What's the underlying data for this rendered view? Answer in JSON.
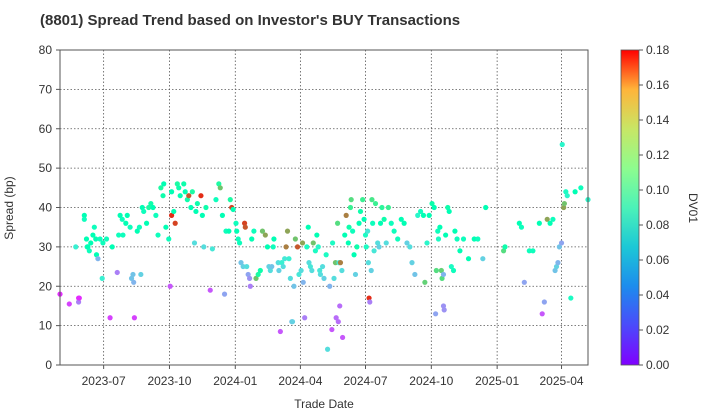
{
  "chart_data": {
    "type": "scatter",
    "title": "(8801)   Spread Trend based on Investor's BUY Transactions",
    "xlabel": "Trade Date",
    "ylabel": "Spread (bp)",
    "colorbar_label": "DV01",
    "colormap": "rainbow",
    "grid": true,
    "xlim": [
      "2023-05-01",
      "2025-05-08"
    ],
    "ylim": [
      0,
      80
    ],
    "clim": [
      0.0,
      0.18
    ],
    "xticks": [
      {
        "date": "2023-07-01",
        "label": "2023-07"
      },
      {
        "date": "2023-10-01",
        "label": "2023-10"
      },
      {
        "date": "2024-01-01",
        "label": "2024-01"
      },
      {
        "date": "2024-04-01",
        "label": "2024-04"
      },
      {
        "date": "2024-07-01",
        "label": "2024-07"
      },
      {
        "date": "2024-10-01",
        "label": "2024-10"
      },
      {
        "date": "2025-01-01",
        "label": "2025-01"
      },
      {
        "date": "2025-04-01",
        "label": "2025-04"
      }
    ],
    "yticks": [
      0,
      10,
      20,
      30,
      40,
      50,
      60,
      70,
      80
    ],
    "cticks": [
      "0.00",
      "0.02",
      "0.04",
      "0.06",
      "0.08",
      "0.10",
      "0.12",
      "0.14",
      "0.16",
      "0.18"
    ],
    "points": [
      [
        "2023-05-01",
        18,
        0.01
      ],
      [
        "2023-05-14",
        15.5,
        0.015
      ],
      [
        "2023-05-23",
        30,
        0.07
      ],
      [
        "2023-05-27",
        17,
        0.01
      ],
      [
        "2023-05-27",
        16,
        0.03
      ],
      [
        "2023-05-28",
        17,
        0.01
      ],
      [
        "2023-06-04",
        38,
        0.09
      ],
      [
        "2023-06-04",
        37,
        0.085
      ],
      [
        "2023-06-07",
        32,
        0.09
      ],
      [
        "2023-06-08",
        30,
        0.085
      ],
      [
        "2023-06-09",
        30,
        0.09
      ],
      [
        "2023-06-11",
        29,
        0.085
      ],
      [
        "2023-06-13",
        31,
        0.09
      ],
      [
        "2023-06-16",
        33,
        0.09
      ],
      [
        "2023-06-18",
        35,
        0.085
      ],
      [
        "2023-06-20",
        32,
        0.09
      ],
      [
        "2023-06-21",
        28,
        0.09
      ],
      [
        "2023-06-23",
        27,
        0.045
      ],
      [
        "2023-06-26",
        32,
        0.085
      ],
      [
        "2023-06-29",
        22,
        0.07
      ],
      [
        "2023-06-30",
        31,
        0.085
      ],
      [
        "2023-07-05",
        32,
        0.085
      ],
      [
        "2023-07-10",
        12,
        0.015
      ],
      [
        "2023-07-13",
        30,
        0.09
      ],
      [
        "2023-07-20",
        23.5,
        0.03
      ],
      [
        "2023-07-22",
        33,
        0.085
      ],
      [
        "2023-07-24",
        38,
        0.09
      ],
      [
        "2023-07-27",
        37,
        0.085
      ],
      [
        "2023-07-28",
        33,
        0.085
      ],
      [
        "2023-08-01",
        36,
        0.09
      ],
      [
        "2023-08-03",
        38,
        0.09
      ],
      [
        "2023-08-07",
        35,
        0.085
      ],
      [
        "2023-08-09",
        22,
        0.05
      ],
      [
        "2023-08-11",
        23,
        0.05
      ],
      [
        "2023-08-12",
        21,
        0.045
      ],
      [
        "2023-08-13",
        12,
        0.015
      ],
      [
        "2023-08-17",
        34,
        0.09
      ],
      [
        "2023-08-20",
        35,
        0.085
      ],
      [
        "2023-08-22",
        23,
        0.055
      ],
      [
        "2023-08-24",
        40,
        0.09
      ],
      [
        "2023-08-26",
        39,
        0.085
      ],
      [
        "2023-08-30",
        36,
        0.09
      ],
      [
        "2023-09-02",
        40,
        0.1
      ],
      [
        "2023-09-05",
        41,
        0.095
      ],
      [
        "2023-09-08",
        40,
        0.09
      ],
      [
        "2023-09-12",
        38,
        0.085
      ],
      [
        "2023-09-15",
        33,
        0.085
      ],
      [
        "2023-09-19",
        45,
        0.1
      ],
      [
        "2023-09-22",
        43,
        0.095
      ],
      [
        "2023-09-23",
        46,
        0.09
      ],
      [
        "2023-09-26",
        35,
        0.09
      ],
      [
        "2023-09-30",
        32,
        0.085
      ],
      [
        "2023-10-02",
        20,
        0.02
      ],
      [
        "2023-10-04",
        44,
        0.09
      ],
      [
        "2023-10-04",
        38,
        0.17
      ],
      [
        "2023-10-07",
        39,
        0.09
      ],
      [
        "2023-10-09",
        36,
        0.165
      ],
      [
        "2023-10-12",
        46,
        0.1
      ],
      [
        "2023-10-14",
        45,
        0.095
      ],
      [
        "2023-10-16",
        43,
        0.09
      ],
      [
        "2023-10-21",
        46,
        0.095
      ],
      [
        "2023-10-23",
        44,
        0.09
      ],
      [
        "2023-10-26",
        42,
        0.095
      ],
      [
        "2023-10-28",
        43,
        0.16
      ],
      [
        "2023-10-31",
        40,
        0.09
      ],
      [
        "2023-11-02",
        44,
        0.1
      ],
      [
        "2023-11-05",
        31,
        0.06
      ],
      [
        "2023-11-07",
        39,
        0.09
      ],
      [
        "2023-11-09",
        41,
        0.095
      ],
      [
        "2023-11-14",
        43,
        0.17
      ],
      [
        "2023-11-16",
        38,
        0.09
      ],
      [
        "2023-11-18",
        30,
        0.06
      ],
      [
        "2023-11-21",
        40,
        0.095
      ],
      [
        "2023-11-27",
        19,
        0.02
      ],
      [
        "2023-11-30",
        29.5,
        0.065
      ],
      [
        "2023-12-05",
        42,
        0.085
      ],
      [
        "2023-12-09",
        46,
        0.1
      ],
      [
        "2023-12-11",
        45,
        0.13
      ],
      [
        "2023-12-14",
        38,
        0.09
      ],
      [
        "2023-12-17",
        18,
        0.04
      ],
      [
        "2023-12-19",
        34,
        0.085
      ],
      [
        "2023-12-23",
        34,
        0.09
      ],
      [
        "2023-12-25",
        42,
        0.1
      ],
      [
        "2023-12-27",
        40,
        0.165
      ],
      [
        "2023-12-29",
        39.5,
        0.09
      ],
      [
        "2024-01-02",
        36,
        0.085
      ],
      [
        "2024-01-03",
        34,
        0.09
      ],
      [
        "2024-01-05",
        32,
        0.085
      ],
      [
        "2024-01-07",
        31,
        0.085
      ],
      [
        "2024-01-09",
        26,
        0.05
      ],
      [
        "2024-01-12",
        25,
        0.055
      ],
      [
        "2024-01-14",
        36,
        0.165
      ],
      [
        "2024-01-15",
        35,
        0.16
      ],
      [
        "2024-01-17",
        25,
        0.06
      ],
      [
        "2024-01-19",
        23,
        0.04
      ],
      [
        "2024-01-21",
        22,
        0.035
      ],
      [
        "2024-01-22",
        20,
        0.03
      ],
      [
        "2024-01-24",
        32,
        0.09
      ],
      [
        "2024-01-27",
        34,
        0.085
      ],
      [
        "2024-01-30",
        22,
        0.13
      ],
      [
        "2024-02-02",
        23,
        0.1
      ],
      [
        "2024-02-05",
        24,
        0.095
      ],
      [
        "2024-02-08",
        34,
        0.13
      ],
      [
        "2024-02-12",
        33,
        0.14
      ],
      [
        "2024-02-15",
        30,
        0.09
      ],
      [
        "2024-02-17",
        25,
        0.055
      ],
      [
        "2024-02-19",
        24,
        0.06
      ],
      [
        "2024-02-21",
        25,
        0.05
      ],
      [
        "2024-02-23",
        30,
        0.085
      ],
      [
        "2024-02-24",
        32,
        0.09
      ],
      [
        "2024-03-01",
        26,
        0.06
      ],
      [
        "2024-03-02",
        24,
        0.055
      ],
      [
        "2024-03-04",
        8.5,
        0.02
      ],
      [
        "2024-03-06",
        26,
        0.07
      ],
      [
        "2024-03-08",
        25,
        0.06
      ],
      [
        "2024-03-10",
        27,
        0.065
      ],
      [
        "2024-03-12",
        30,
        0.15
      ],
      [
        "2024-03-14",
        34,
        0.14
      ],
      [
        "2024-03-16",
        27,
        0.07
      ],
      [
        "2024-03-18",
        22,
        0.06
      ],
      [
        "2024-03-20",
        11,
        0.05
      ],
      [
        "2024-03-21",
        11,
        0.055
      ],
      [
        "2024-03-23",
        20,
        0.05
      ],
      [
        "2024-03-25",
        32,
        0.13
      ],
      [
        "2024-03-28",
        30,
        0.16
      ],
      [
        "2024-03-30",
        23,
        0.065
      ],
      [
        "2024-04-02",
        24,
        0.06
      ],
      [
        "2024-04-04",
        31,
        0.14
      ],
      [
        "2024-04-05",
        21,
        0.045
      ],
      [
        "2024-04-07",
        12,
        0.03
      ],
      [
        "2024-04-10",
        30,
        0.08
      ],
      [
        "2024-04-12",
        35,
        0.09
      ],
      [
        "2024-04-13",
        26,
        0.06
      ],
      [
        "2024-04-15",
        25,
        0.065
      ],
      [
        "2024-04-17",
        24,
        0.06
      ],
      [
        "2024-04-19",
        31,
        0.13
      ],
      [
        "2024-04-22",
        29,
        0.08
      ],
      [
        "2024-04-24",
        33,
        0.09
      ],
      [
        "2024-04-26",
        30,
        0.075
      ],
      [
        "2024-04-28",
        24,
        0.065
      ],
      [
        "2024-04-29",
        23,
        0.06
      ],
      [
        "2024-05-02",
        25,
        0.06
      ],
      [
        "2024-05-04",
        22,
        0.055
      ],
      [
        "2024-05-07",
        28,
        0.08
      ],
      [
        "2024-05-09",
        4,
        0.06
      ],
      [
        "2024-05-12",
        20,
        0.045
      ],
      [
        "2024-05-15",
        9,
        0.02
      ],
      [
        "2024-05-16",
        31,
        0.08
      ],
      [
        "2024-05-18",
        22,
        0.06
      ],
      [
        "2024-05-20",
        26,
        0.13
      ],
      [
        "2024-05-21",
        12,
        0.025
      ],
      [
        "2024-05-23",
        36,
        0.12
      ],
      [
        "2024-05-24",
        11,
        0.025
      ],
      [
        "2024-05-25",
        26,
        0.065
      ],
      [
        "2024-05-26",
        15,
        0.025
      ],
      [
        "2024-05-27",
        26,
        0.15
      ],
      [
        "2024-05-29",
        24,
        0.06
      ],
      [
        "2024-05-30",
        7,
        0.02
      ],
      [
        "2024-06-02",
        33,
        0.09
      ],
      [
        "2024-06-04",
        38,
        0.15
      ],
      [
        "2024-06-07",
        31,
        0.09
      ],
      [
        "2024-06-08",
        35,
        0.095
      ],
      [
        "2024-06-10",
        40,
        0.11
      ],
      [
        "2024-06-11",
        42,
        0.12
      ],
      [
        "2024-06-13",
        34,
        0.085
      ],
      [
        "2024-06-15",
        28,
        0.09
      ],
      [
        "2024-06-17",
        23,
        0.055
      ],
      [
        "2024-06-19",
        30,
        0.095
      ],
      [
        "2024-06-22",
        36,
        0.09
      ],
      [
        "2024-06-24",
        39,
        0.095
      ],
      [
        "2024-06-27",
        42,
        0.11
      ],
      [
        "2024-06-29",
        37,
        0.09
      ],
      [
        "2024-07-01",
        33,
        0.08
      ],
      [
        "2024-07-02",
        30,
        0.08
      ],
      [
        "2024-07-04",
        34,
        0.065
      ],
      [
        "2024-07-05",
        26,
        0.06
      ],
      [
        "2024-07-06",
        17,
        0.17
      ],
      [
        "2024-07-07",
        16,
        0.03
      ],
      [
        "2024-07-09",
        24,
        0.055
      ],
      [
        "2024-07-10",
        42,
        0.115
      ],
      [
        "2024-07-11",
        36,
        0.085
      ],
      [
        "2024-07-13",
        29,
        0.065
      ],
      [
        "2024-07-15",
        41,
        0.11
      ],
      [
        "2024-07-18",
        31,
        0.06
      ],
      [
        "2024-07-20",
        30,
        0.055
      ],
      [
        "2024-07-22",
        36,
        0.09
      ],
      [
        "2024-07-24",
        40,
        0.105
      ],
      [
        "2024-07-27",
        37,
        0.095
      ],
      [
        "2024-07-30",
        31,
        0.06
      ],
      [
        "2024-08-02",
        40,
        0.11
      ],
      [
        "2024-08-06",
        36,
        0.085
      ],
      [
        "2024-08-10",
        34,
        0.085
      ],
      [
        "2024-08-15",
        32,
        0.085
      ],
      [
        "2024-08-20",
        37,
        0.09
      ],
      [
        "2024-08-24",
        36,
        0.09
      ],
      [
        "2024-08-28",
        31,
        0.055
      ],
      [
        "2024-09-01",
        30,
        0.06
      ],
      [
        "2024-09-04",
        26,
        0.055
      ],
      [
        "2024-09-08",
        23,
        0.05
      ],
      [
        "2024-09-12",
        38,
        0.075
      ],
      [
        "2024-09-16",
        39,
        0.085
      ],
      [
        "2024-09-20",
        38,
        0.09
      ],
      [
        "2024-09-22",
        21,
        0.125
      ],
      [
        "2024-09-25",
        31,
        0.075
      ],
      [
        "2024-09-28",
        38,
        0.09
      ],
      [
        "2024-10-02",
        41,
        0.095
      ],
      [
        "2024-10-05",
        40,
        0.09
      ],
      [
        "2024-10-07",
        13,
        0.04
      ],
      [
        "2024-10-08",
        24,
        0.12
      ],
      [
        "2024-10-10",
        34,
        0.085
      ],
      [
        "2024-10-11",
        32,
        0.08
      ],
      [
        "2024-10-13",
        35,
        0.09
      ],
      [
        "2024-10-15",
        24,
        0.125
      ],
      [
        "2024-10-16",
        22,
        0.12
      ],
      [
        "2024-10-18",
        23,
        0.045
      ],
      [
        "2024-10-18",
        15,
        0.035
      ],
      [
        "2024-10-19",
        14,
        0.035
      ],
      [
        "2024-10-21",
        33,
        0.09
      ],
      [
        "2024-10-24",
        40,
        0.095
      ],
      [
        "2024-10-26",
        39,
        0.09
      ],
      [
        "2024-10-29",
        25,
        0.08
      ],
      [
        "2024-11-01",
        24,
        0.085
      ],
      [
        "2024-11-03",
        34,
        0.09
      ],
      [
        "2024-11-06",
        32,
        0.085
      ],
      [
        "2024-11-10",
        29,
        0.09
      ],
      [
        "2024-11-15",
        32,
        0.085
      ],
      [
        "2024-11-22",
        27,
        0.09
      ],
      [
        "2024-11-30",
        32,
        0.09
      ],
      [
        "2024-12-05",
        32,
        0.085
      ],
      [
        "2024-12-12",
        27,
        0.055
      ],
      [
        "2024-12-16",
        40,
        0.09
      ],
      [
        "2025-01-10",
        29,
        0.12
      ],
      [
        "2025-01-12",
        30,
        0.095
      ],
      [
        "2025-02-01",
        36,
        0.09
      ],
      [
        "2025-02-04",
        35,
        0.085
      ],
      [
        "2025-02-08",
        21,
        0.04
      ],
      [
        "2025-02-15",
        29,
        0.085
      ],
      [
        "2025-02-20",
        29,
        0.085
      ],
      [
        "2025-03-01",
        36,
        0.09
      ],
      [
        "2025-03-05",
        13,
        0.02
      ],
      [
        "2025-03-08",
        16,
        0.04
      ],
      [
        "2025-03-12",
        37,
        0.14
      ],
      [
        "2025-03-16",
        36,
        0.09
      ],
      [
        "2025-03-20",
        37,
        0.085
      ],
      [
        "2025-03-23",
        24,
        0.05
      ],
      [
        "2025-03-25",
        25,
        0.055
      ],
      [
        "2025-03-27",
        26,
        0.045
      ],
      [
        "2025-03-29",
        30,
        0.05
      ],
      [
        "2025-04-01",
        31,
        0.04
      ],
      [
        "2025-04-02",
        56,
        0.075
      ],
      [
        "2025-04-04",
        40,
        0.14
      ],
      [
        "2025-04-05",
        41,
        0.13
      ],
      [
        "2025-04-07",
        44,
        0.08
      ],
      [
        "2025-04-09",
        43,
        0.075
      ],
      [
        "2025-04-14",
        17,
        0.08
      ],
      [
        "2025-04-20",
        44,
        0.09
      ],
      [
        "2025-04-28",
        45,
        0.085
      ],
      [
        "2025-05-08",
        42,
        0.075
      ]
    ]
  }
}
